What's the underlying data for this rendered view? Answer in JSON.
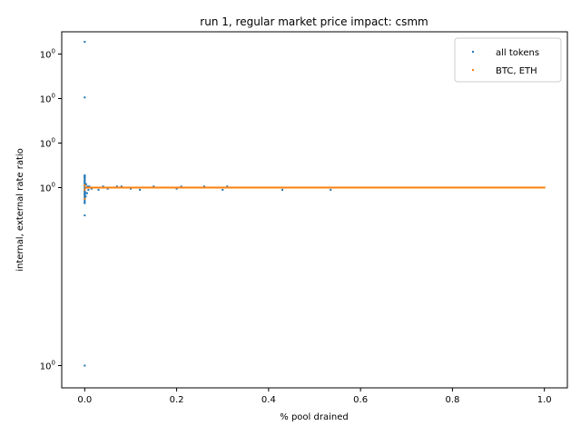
{
  "chart_data": {
    "type": "scatter",
    "title": "run 1, regular market price impact: csmm",
    "xlabel": "% pool drained",
    "ylabel": "internal, external rate ratio",
    "xlim": [
      -0.05,
      1.05
    ],
    "ylim": [
      0.91,
      1.07
    ],
    "x_ticks": [
      {
        "value": 0.0,
        "label": "0.0"
      },
      {
        "value": 0.2,
        "label": "0.2"
      },
      {
        "value": 0.4,
        "label": "0.4"
      },
      {
        "value": 0.6,
        "label": "0.6"
      },
      {
        "value": 0.8,
        "label": "0.8"
      },
      {
        "value": 1.0,
        "label": "1.0"
      }
    ],
    "y_ticks": [
      {
        "value": 0.92,
        "label": "10^0"
      },
      {
        "value": 1.0,
        "label": "10^0"
      },
      {
        "value": 1.02,
        "label": "10^0"
      },
      {
        "value": 1.04,
        "label": "10^0"
      },
      {
        "value": 1.06,
        "label": "10^0"
      }
    ],
    "legend": {
      "placement": "upper right"
    },
    "series": [
      {
        "name": "all tokens",
        "color": "#1f77b4",
        "points": [
          [
            0.0,
            1.0655
          ],
          [
            0.0,
            1.0405
          ],
          [
            0.0,
            1.0055
          ],
          [
            0.0,
            1.005
          ],
          [
            0.0,
            1.0045
          ],
          [
            0.0,
            1.003
          ],
          [
            0.0,
            1.002
          ],
          [
            0.0,
            1.001
          ],
          [
            0.0,
            0.999
          ],
          [
            0.0,
            0.998
          ],
          [
            0.0,
            0.997
          ],
          [
            0.0,
            0.9955
          ],
          [
            0.0,
            0.993
          ],
          [
            0.0,
            0.9875
          ],
          [
            0.0,
            0.92
          ],
          [
            0.002,
            0.996
          ],
          [
            0.003,
            1.0015
          ],
          [
            0.004,
            0.9975
          ],
          [
            0.005,
            0.9975
          ],
          [
            0.006,
            1.0005
          ],
          [
            0.008,
            0.999
          ],
          [
            0.01,
            1.0005
          ],
          [
            0.015,
            0.9995
          ],
          [
            0.02,
            1.0
          ],
          [
            0.03,
            0.999
          ],
          [
            0.04,
            1.0005
          ],
          [
            0.05,
            0.9995
          ],
          [
            0.06,
            1.0
          ],
          [
            0.07,
            1.0005
          ],
          [
            0.08,
            1.0005
          ],
          [
            0.1,
            0.9995
          ],
          [
            0.12,
            0.999
          ],
          [
            0.15,
            1.0005
          ],
          [
            0.2,
            0.9995
          ],
          [
            0.21,
            1.0005
          ],
          [
            0.26,
            1.0005
          ],
          [
            0.3,
            0.999
          ],
          [
            0.31,
            1.0005
          ],
          [
            0.43,
            0.999
          ],
          [
            0.535,
            0.999
          ]
        ]
      },
      {
        "name": "BTC, ETH",
        "color": "#ff7f0e",
        "points": [
          [
            0.0,
            0.995
          ],
          [
            0.0,
            1.001
          ],
          [
            0.0,
            0.999
          ],
          [
            0.005,
            1.0
          ],
          [
            0.01,
            1.0
          ],
          [
            0.02,
            1.0
          ],
          [
            0.05,
            1.0
          ],
          [
            0.1,
            1.0
          ],
          [
            0.2,
            1.0
          ],
          [
            0.3,
            1.0
          ],
          [
            0.4,
            1.0
          ],
          [
            0.5,
            1.0
          ],
          [
            0.6,
            1.0
          ],
          [
            0.7,
            1.0
          ],
          [
            0.8,
            1.0
          ],
          [
            0.9,
            1.0
          ],
          [
            1.0,
            1.0
          ]
        ]
      }
    ]
  }
}
